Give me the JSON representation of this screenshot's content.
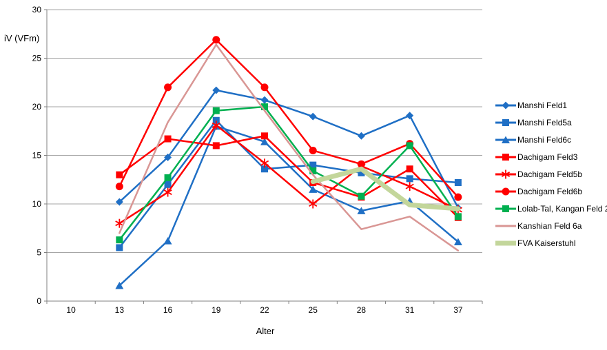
{
  "chart_data": {
    "type": "line",
    "title": "",
    "xlabel": "Alter",
    "ylabel": "iV (VFm)",
    "ylim": [
      0,
      30
    ],
    "yticks": [
      "0",
      "5",
      "10",
      "15",
      "20",
      "25",
      "30"
    ],
    "categories": [
      "10",
      "13",
      "16",
      "19",
      "22",
      "25",
      "28",
      "31",
      "37"
    ],
    "grid": true,
    "legend_position": "right",
    "axis_color": "#808080",
    "grid_color": "#A6A6A6",
    "series": [
      {
        "name": "Manshi Feld1",
        "color": "#1F6FC5",
        "marker": "diamond",
        "width": 2.5,
        "values": [
          null,
          10.2,
          14.8,
          21.7,
          20.7,
          19.0,
          17.0,
          19.1,
          9.6
        ]
      },
      {
        "name": "Manshi Feld5a",
        "color": "#1F6FC5",
        "marker": "square",
        "width": 2.5,
        "values": [
          null,
          5.5,
          12.0,
          18.6,
          13.6,
          14.0,
          13.2,
          12.6,
          12.2
        ]
      },
      {
        "name": "Manshi Feld6c",
        "color": "#1F6FC5",
        "marker": "triangle",
        "width": 2.5,
        "values": [
          null,
          1.6,
          6.2,
          18.0,
          16.4,
          11.5,
          9.3,
          10.3,
          6.1
        ]
      },
      {
        "name": "Dachigam Feld3",
        "color": "#FF0000",
        "marker": "square",
        "width": 2.5,
        "values": [
          null,
          13.0,
          16.7,
          16.0,
          17.0,
          12.2,
          10.7,
          13.6,
          8.6
        ]
      },
      {
        "name": "Dachigam Feld5b",
        "color": "#FF0000",
        "marker": "asterisk",
        "width": 2.5,
        "values": [
          null,
          8.0,
          11.2,
          18.1,
          14.2,
          10.0,
          13.9,
          11.8,
          9.4
        ]
      },
      {
        "name": "Dachigam Feld6b",
        "color": "#FF0000",
        "marker": "circle",
        "width": 2.5,
        "values": [
          null,
          11.8,
          22.0,
          26.9,
          22.0,
          15.5,
          14.1,
          16.2,
          10.7
        ]
      },
      {
        "name": "Lolab-Tal, Kangan Feld 2",
        "color": "#00B050",
        "marker": "square",
        "width": 2.5,
        "values": [
          null,
          6.3,
          12.7,
          19.6,
          20.0,
          13.4,
          10.8,
          16.0,
          8.7
        ]
      },
      {
        "name": "Kanshian Feld 6a",
        "color": "#D99694",
        "marker": "none",
        "width": 2.5,
        "values": [
          null,
          7.0,
          18.4,
          26.4,
          19.6,
          13.0,
          7.4,
          8.7,
          5.2
        ]
      },
      {
        "name": "FVA Kaiserstuhl",
        "color": "#C3D69B",
        "marker": "none",
        "width": 7,
        "values": [
          null,
          null,
          null,
          null,
          null,
          12.3,
          13.6,
          9.9,
          9.5
        ]
      }
    ]
  }
}
